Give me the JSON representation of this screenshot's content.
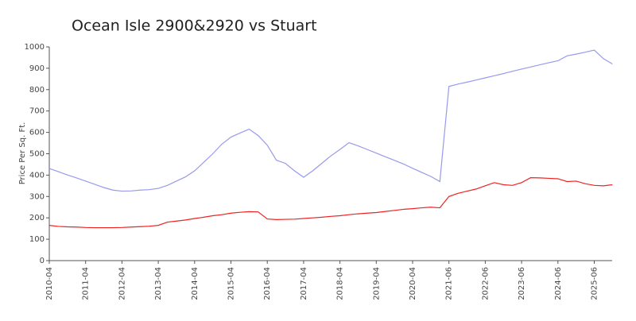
{
  "chart_data": {
    "type": "line",
    "title": "Ocean Isle 2900&2920 vs Stuart",
    "ylabel": "Price Per Sq. Ft.",
    "categories": [
      "2010-04",
      null,
      null,
      null,
      "2011-04",
      null,
      null,
      null,
      "2012-04",
      null,
      null,
      null,
      "2013-04",
      null,
      null,
      null,
      "2014-04",
      null,
      null,
      null,
      "2015-04",
      null,
      null,
      null,
      "2016-04",
      null,
      null,
      null,
      "2017-04",
      null,
      null,
      null,
      "2018-04",
      null,
      null,
      null,
      "2019-04",
      null,
      null,
      null,
      "2020-04",
      null,
      null,
      null,
      "2021-06",
      null,
      null,
      null,
      "2022-06",
      null,
      null,
      null,
      "2023-06",
      null,
      null,
      null,
      "2024-06",
      null,
      null,
      null,
      "2025-06",
      null,
      null
    ],
    "series": [
      {
        "name": "Ocean Isle 2900&2920",
        "color": "#9999ee",
        "values": [
          431,
          416,
          401,
          387,
          372,
          357,
          342,
          330,
          325,
          326,
          330,
          332,
          338,
          352,
          372,
          392,
          420,
          460,
          500,
          545,
          578,
          597,
          615,
          585,
          540,
          470,
          455,
          420,
          390,
          420,
          455,
          490,
          520,
          552,
          537,
          520,
          503,
          486,
          469,
          452,
          432,
          413,
          394,
          370,
          815,
          826,
          835,
          845,
          855,
          865,
          875,
          886,
          896,
          906,
          916,
          926,
          935,
          958,
          966,
          975,
          985,
          945,
          920
        ]
      },
      {
        "name": "Stuart",
        "color": "#ee2222",
        "values": [
          165,
          160,
          158,
          157,
          155,
          154,
          154,
          154,
          155,
          157,
          159,
          161,
          165,
          180,
          185,
          190,
          197,
          203,
          210,
          215,
          222,
          226,
          229,
          228,
          195,
          192,
          193,
          194,
          197,
          200,
          203,
          207,
          210,
          215,
          219,
          222,
          225,
          230,
          235,
          240,
          243,
          247,
          250,
          247,
          300,
          315,
          325,
          335,
          350,
          365,
          355,
          352,
          365,
          388,
          387,
          385,
          383,
          370,
          372,
          360,
          352,
          350,
          355
        ]
      }
    ],
    "ylim": [
      0,
      1000
    ],
    "yticks": [
      0,
      100,
      200,
      300,
      400,
      500,
      600,
      700,
      800,
      900,
      1000
    ]
  }
}
